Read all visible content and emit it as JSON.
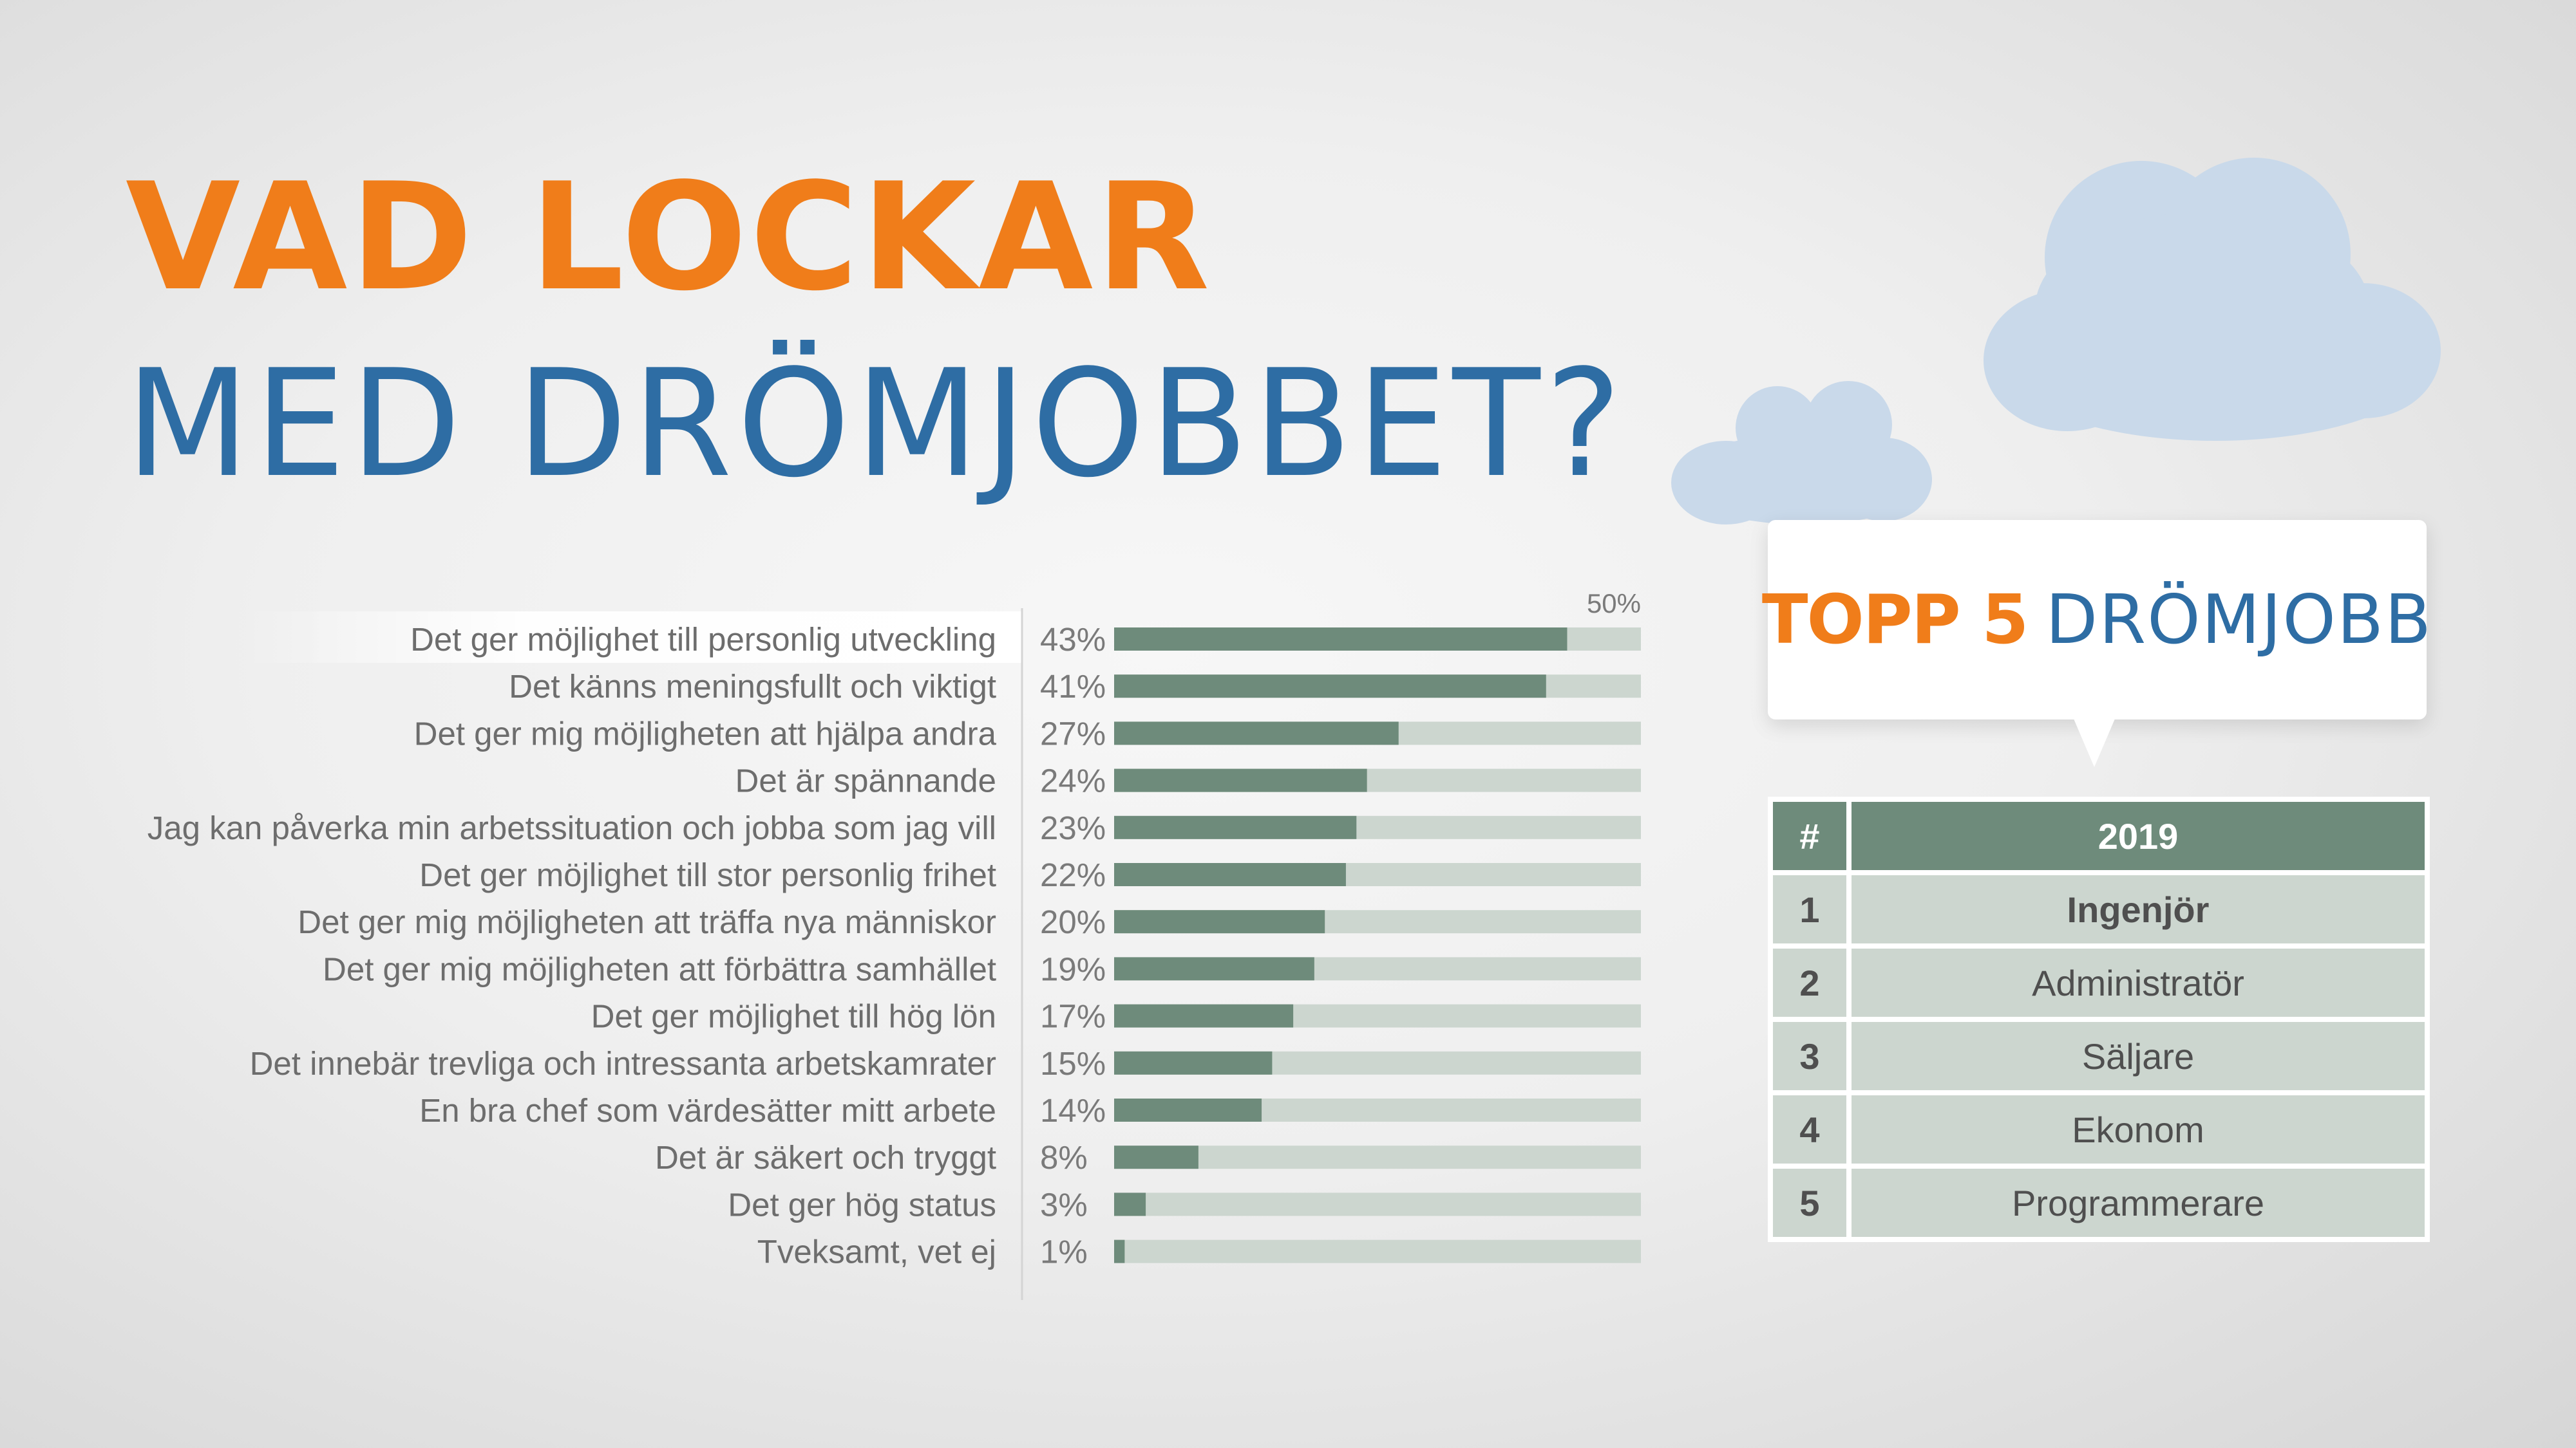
{
  "title": {
    "line1": "VAD LOCKAR",
    "line2": "MED DRÖMJOBBET?"
  },
  "colors": {
    "orange": "#f07d1a",
    "blue": "#2e6da4",
    "bar": "#6e8b7b",
    "track": "#ccd6cf",
    "cloud": "#c9d9ea"
  },
  "chart_data": {
    "type": "bar",
    "orientation": "horizontal",
    "xlim": [
      0,
      50
    ],
    "axis_max_label": "50%",
    "grid": false,
    "categories": [
      "Det ger möjlighet till personlig utveckling",
      "Det känns meningsfullt och viktigt",
      "Det ger mig möjligheten att hjälpa andra",
      "Det är spännande",
      "Jag kan påverka min arbetssituation och jobba som jag vill",
      "Det ger möjlighet till stor personlig frihet",
      "Det ger mig möjligheten att träffa nya människor",
      "Det ger mig möjligheten att förbättra samhället",
      "Det ger möjlighet till hög lön",
      "Det innebär trevliga och intressanta arbetskamrater",
      "En bra chef som värdesätter mitt arbete",
      "Det är säkert och tryggt",
      "Det ger hög status",
      "Tveksamt, vet ej"
    ],
    "values": [
      43,
      41,
      27,
      24,
      23,
      22,
      20,
      19,
      17,
      15,
      14,
      8,
      3,
      1
    ],
    "value_labels": [
      "43%",
      "41%",
      "27%",
      "24%",
      "23%",
      "22%",
      "20%",
      "19%",
      "17%",
      "15%",
      "14%",
      "8%",
      "3%",
      "1%"
    ]
  },
  "callout": {
    "bold": "TOPP 5",
    "light": "DRÖMJOBB"
  },
  "ranking": {
    "headers": [
      "#",
      "2019"
    ],
    "rows": [
      {
        "rank": "1",
        "job": "Ingenjör"
      },
      {
        "rank": "2",
        "job": "Administratör"
      },
      {
        "rank": "3",
        "job": "Säljare"
      },
      {
        "rank": "4",
        "job": "Ekonom"
      },
      {
        "rank": "5",
        "job": "Programmerare"
      }
    ]
  }
}
